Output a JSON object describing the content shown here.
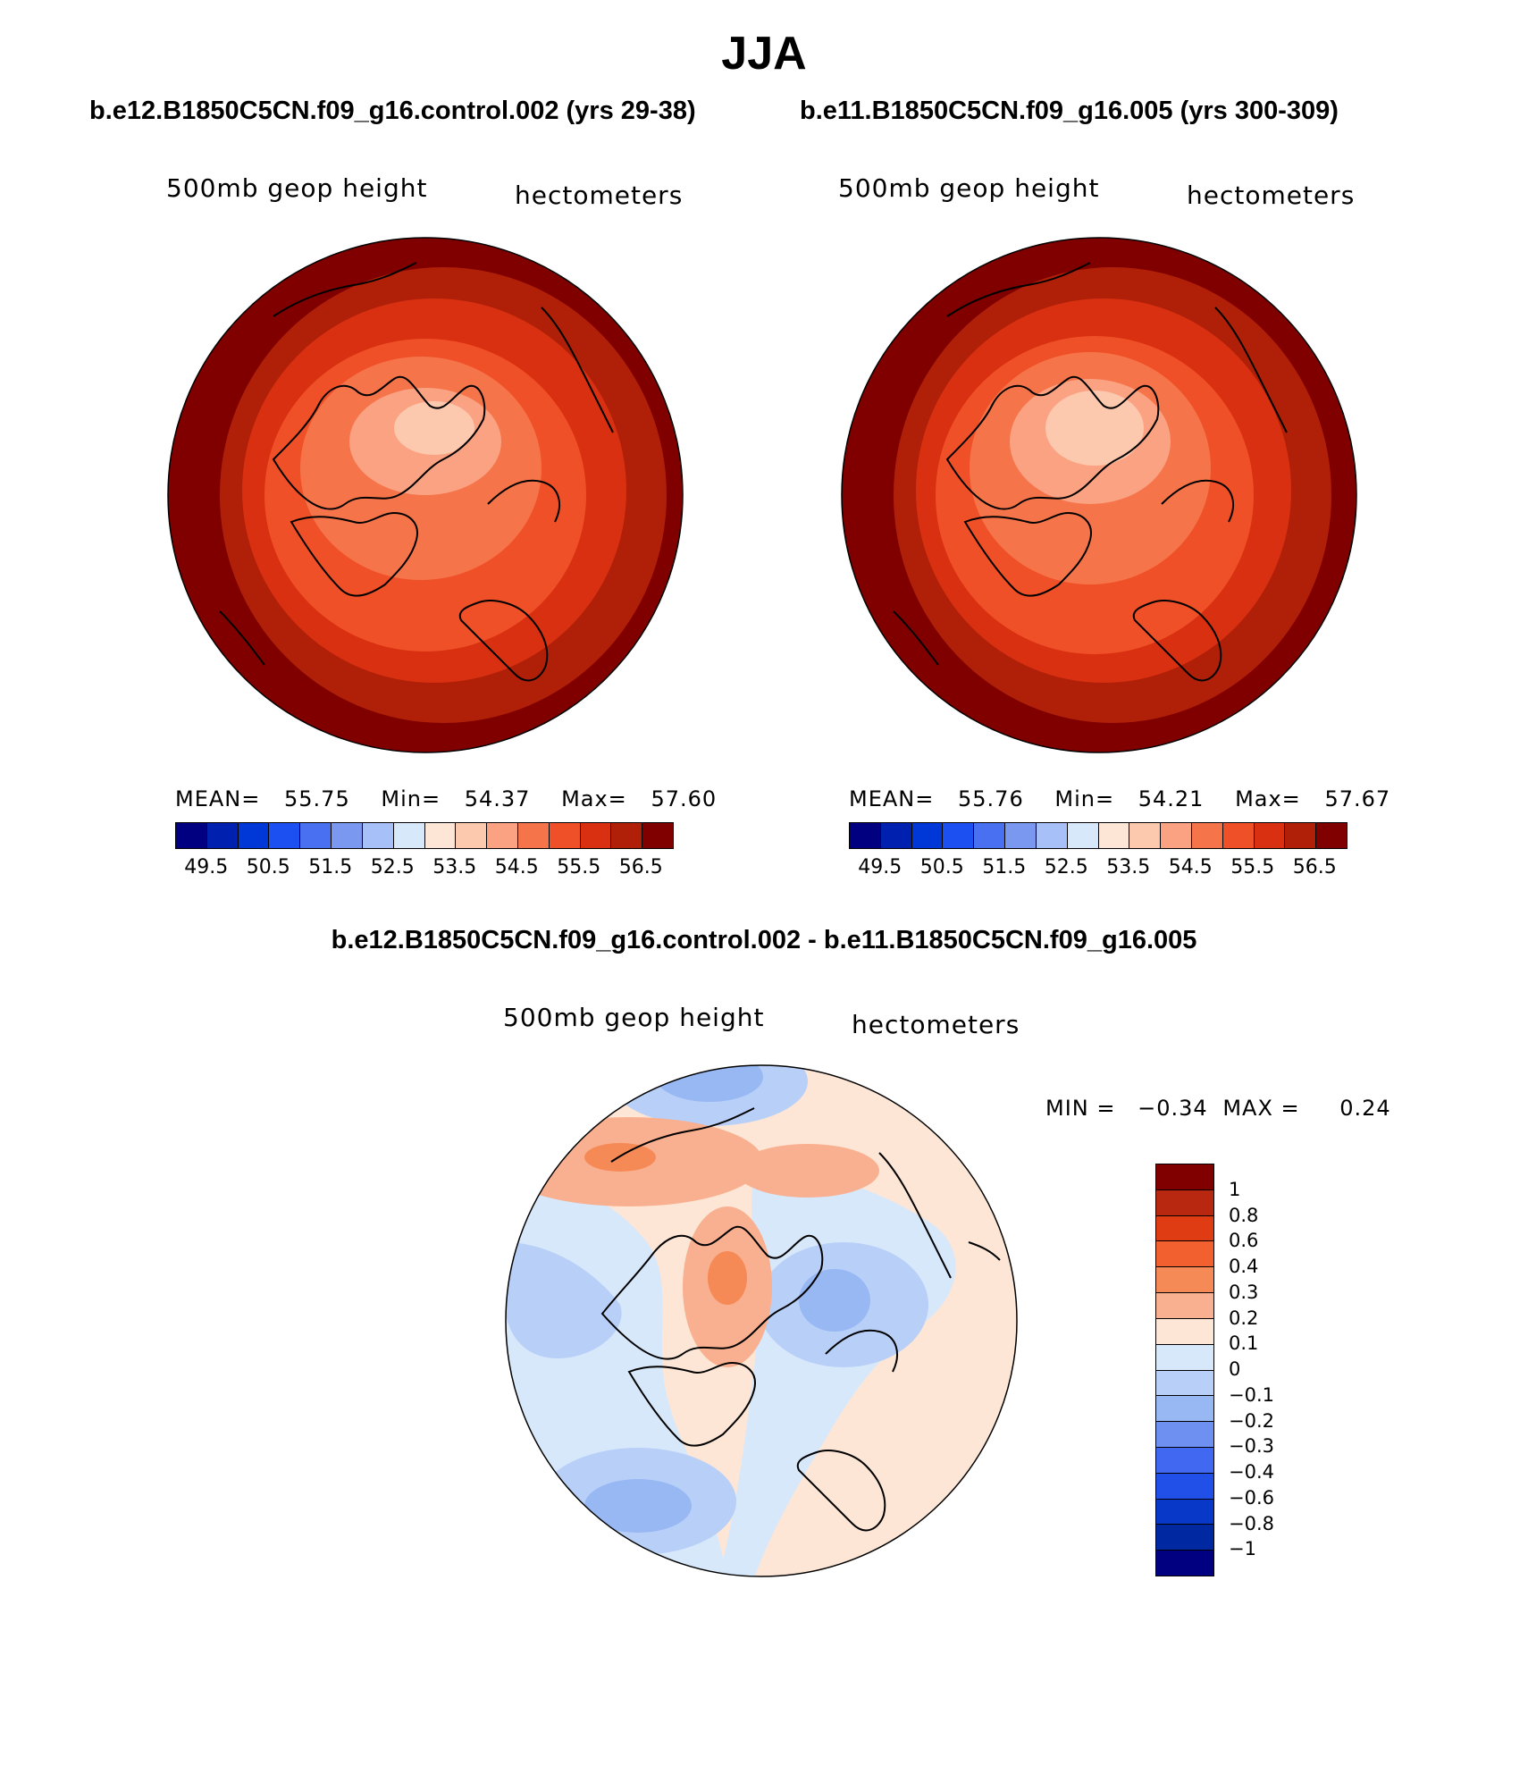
{
  "title": "JJA",
  "panels": [
    {
      "case": "b.e12.B1850C5CN.f09_g16.control.002 (yrs 29-38)",
      "variable": "500mb geop height",
      "units": "hectometers",
      "stats": {
        "mean_label": "MEAN=",
        "mean": "55.75",
        "min_label": "Min=",
        "min": "54.37",
        "max_label": "Max=",
        "max": "57.60"
      }
    },
    {
      "case": "b.e11.B1850C5CN.f09_g16.005 (yrs 300-309)",
      "variable": "500mb geop height",
      "units": "hectometers",
      "stats": {
        "mean_label": "MEAN=",
        "mean": "55.76",
        "min_label": "Min=",
        "min": "54.21",
        "max_label": "Max=",
        "max": "57.67"
      }
    }
  ],
  "colorbar": {
    "colors": [
      "#000080",
      "#0020b0",
      "#0038d8",
      "#1c50f0",
      "#4870f0",
      "#7a98f0",
      "#a8c0f8",
      "#d8e8fb",
      "#fde6d5",
      "#fcc8ae",
      "#fba282",
      "#f6744a",
      "#f05028",
      "#d83010",
      "#b02008",
      "#800000"
    ],
    "tick_labels": [
      "49.5",
      "50.5",
      "51.5",
      "52.5",
      "53.5",
      "54.5",
      "55.5",
      "56.5"
    ]
  },
  "difference": {
    "title": "b.e12.B1850C5CN.f09_g16.control.002 - b.e11.B1850C5CN.f09_g16.005",
    "variable": "500mb geop height",
    "units": "hectometers",
    "min_label": "MIN =",
    "min": "−0.34",
    "max_label": "MAX =",
    "max": "0.24",
    "colorbar": {
      "colors": [
        "#800000",
        "#b82810",
        "#e03c14",
        "#f26030",
        "#f68a56",
        "#f9b090",
        "#fde6d5",
        "#d8e8fb",
        "#b8d0f8",
        "#98b8f4",
        "#6e90f0",
        "#4068f0",
        "#2050e8",
        "#0838c8",
        "#0028a0",
        "#000080"
      ],
      "tick_labels": [
        "1",
        "0.8",
        "0.6",
        "0.4",
        "0.3",
        "0.2",
        "0.1",
        "0",
        "−0.1",
        "−0.2",
        "−0.3",
        "−0.4",
        "−0.6",
        "−0.8",
        "−1"
      ]
    }
  }
}
